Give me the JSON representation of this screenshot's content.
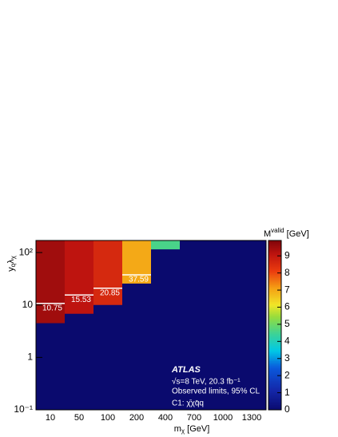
{
  "chart_data": {
    "type": "heatmap",
    "categories": [
      "10",
      "50",
      "100",
      "200",
      "400",
      "700",
      "1000",
      "1300"
    ],
    "z": [
      9.5,
      9.1,
      8.6,
      7.0,
      4.6,
      null,
      null,
      null
    ],
    "region_bottom": [
      4.5,
      6.8,
      10,
      25.6,
      115,
      null,
      null,
      null
    ],
    "limits": [
      10.75,
      15.53,
      20.85,
      37.59,
      null,
      null,
      null,
      null
    ],
    "background_value": 0,
    "ylim": [
      0.1,
      170
    ],
    "yticks": [
      {
        "value": 0.1,
        "label": "10⁻¹"
      },
      1,
      10,
      {
        "value": 100,
        "label": "10²"
      }
    ],
    "log_y": true,
    "zlim": [
      0,
      9.9
    ],
    "zticks": [
      0,
      1,
      2,
      3,
      4,
      5,
      6,
      7,
      8,
      9
    ],
    "xlabel": [
      "m",
      "χ",
      " [GeV]"
    ],
    "ylabel": [
      "y",
      "q",
      "λ",
      "χ"
    ],
    "zlabel": [
      "M",
      "valid",
      " [GeV]"
    ],
    "annotations": [
      "ATLAS",
      "√s=8 TeV, 20.3 fb⁻¹",
      "Observed limits, 95% CL",
      "C1: χ̄χq̄q"
    ]
  }
}
